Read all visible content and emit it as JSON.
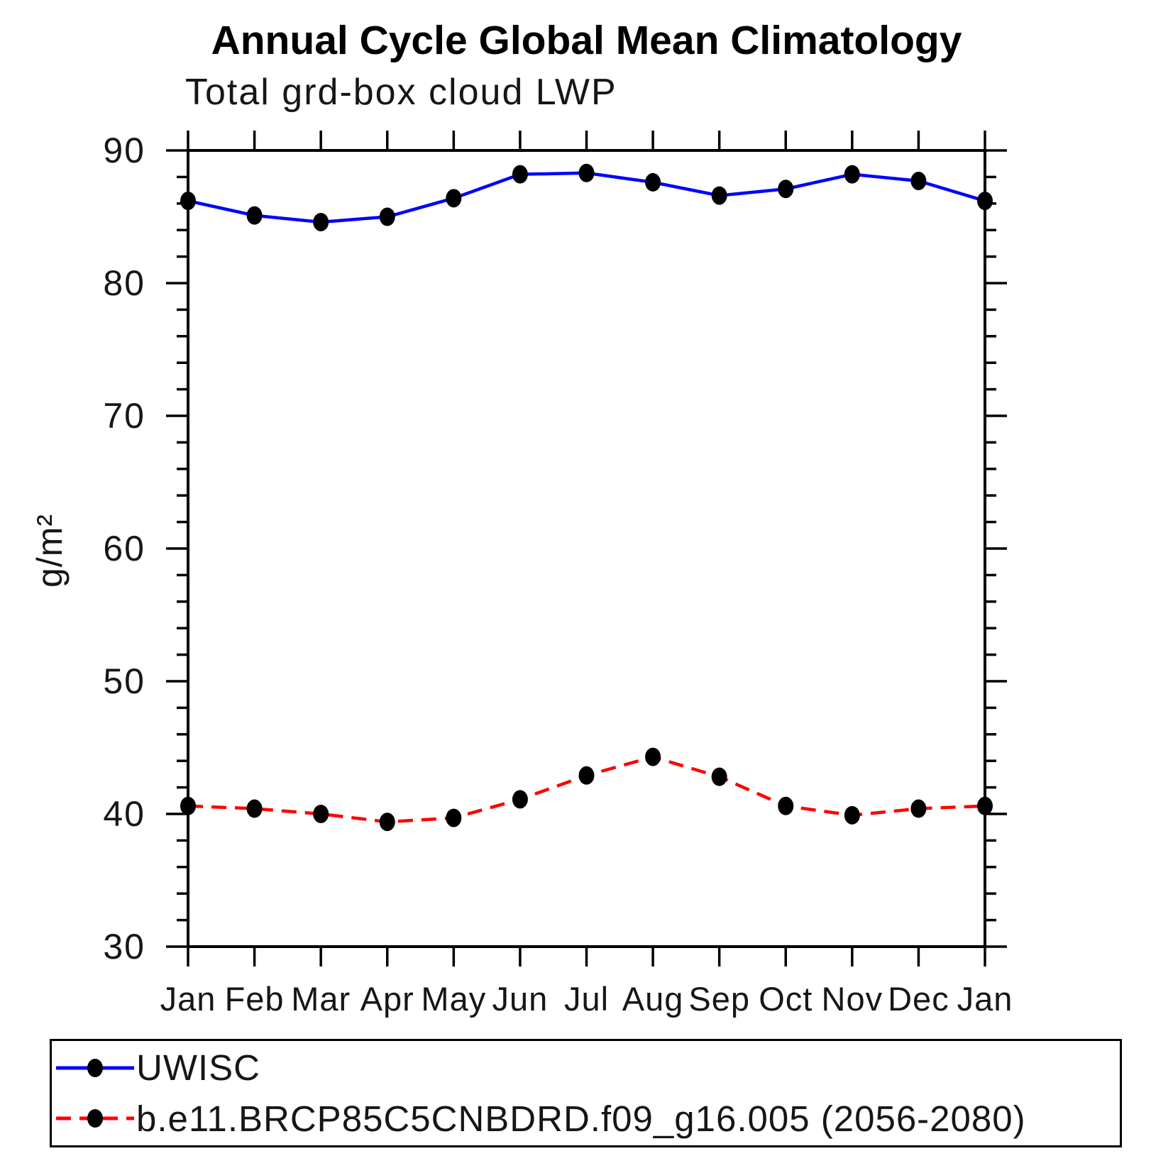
{
  "chart_data": {
    "type": "line",
    "title": "Annual Cycle Global Mean Climatology",
    "subtitle": "Total grd-box cloud LWP",
    "xlabel": "",
    "ylabel": "g/m²",
    "x_tick_labels": [
      "Jan",
      "Feb",
      "Mar",
      "Apr",
      "May",
      "Jun",
      "Jul",
      "Aug",
      "Sep",
      "Oct",
      "Nov",
      "Dec",
      "Jan"
    ],
    "y_tick_labels": [
      30,
      40,
      50,
      60,
      70,
      80,
      90
    ],
    "ylim": [
      30,
      90
    ],
    "y_major_step": 10,
    "y_minor_step": 2,
    "grid": false,
    "legend_position": "below-left",
    "axis_color": "#000000",
    "marker_color": "#000000",
    "series": [
      {
        "name": "UWISC",
        "color": "#0000ff",
        "line_style": "solid",
        "marker": "filled-circle",
        "values": [
          86.2,
          85.1,
          84.6,
          85.0,
          86.4,
          88.2,
          88.3,
          87.6,
          86.6,
          87.1,
          88.2,
          87.7,
          86.2
        ]
      },
      {
        "name": "b.e11.BRCP85C5CNBDRD.f09_g16.005 (2056-2080)",
        "color": "#ff0000",
        "line_style": "dashed",
        "marker": "filled-circle",
        "values": [
          40.6,
          40.4,
          40.0,
          39.4,
          39.7,
          41.1,
          42.9,
          44.3,
          42.8,
          40.6,
          39.9,
          40.4,
          40.6
        ]
      }
    ]
  }
}
